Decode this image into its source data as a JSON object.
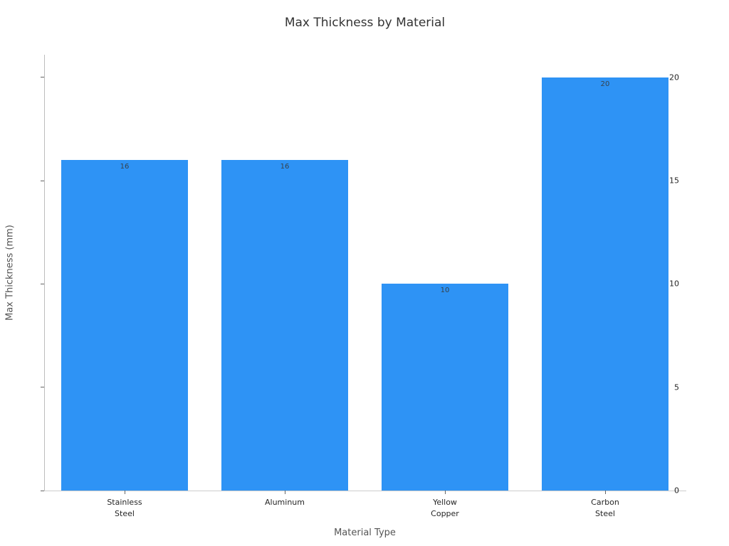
{
  "chart_data": {
    "type": "bar",
    "title": "Max Thickness by Material",
    "xlabel": "Material Type",
    "ylabel": "Max Thickness (mm)",
    "categories": [
      "Stainless\nSteel",
      "Aluminum",
      "Yellow\nCopper",
      "Carbon\nSteel"
    ],
    "values": [
      16,
      16,
      10,
      20
    ],
    "bar_labels": [
      "16",
      "16",
      "10",
      "20"
    ],
    "yticks": [
      0,
      5,
      10,
      15,
      20
    ],
    "ylim": [
      0,
      21.1
    ],
    "grid": false,
    "legend": "none",
    "colors": {
      "bar": "#2e93f5",
      "bar_label": "#36424c",
      "title": "#333333",
      "axis_label": "#555555",
      "tick_label": "#262626",
      "spine": "#c4c4c4",
      "background": "#ffffff"
    }
  }
}
